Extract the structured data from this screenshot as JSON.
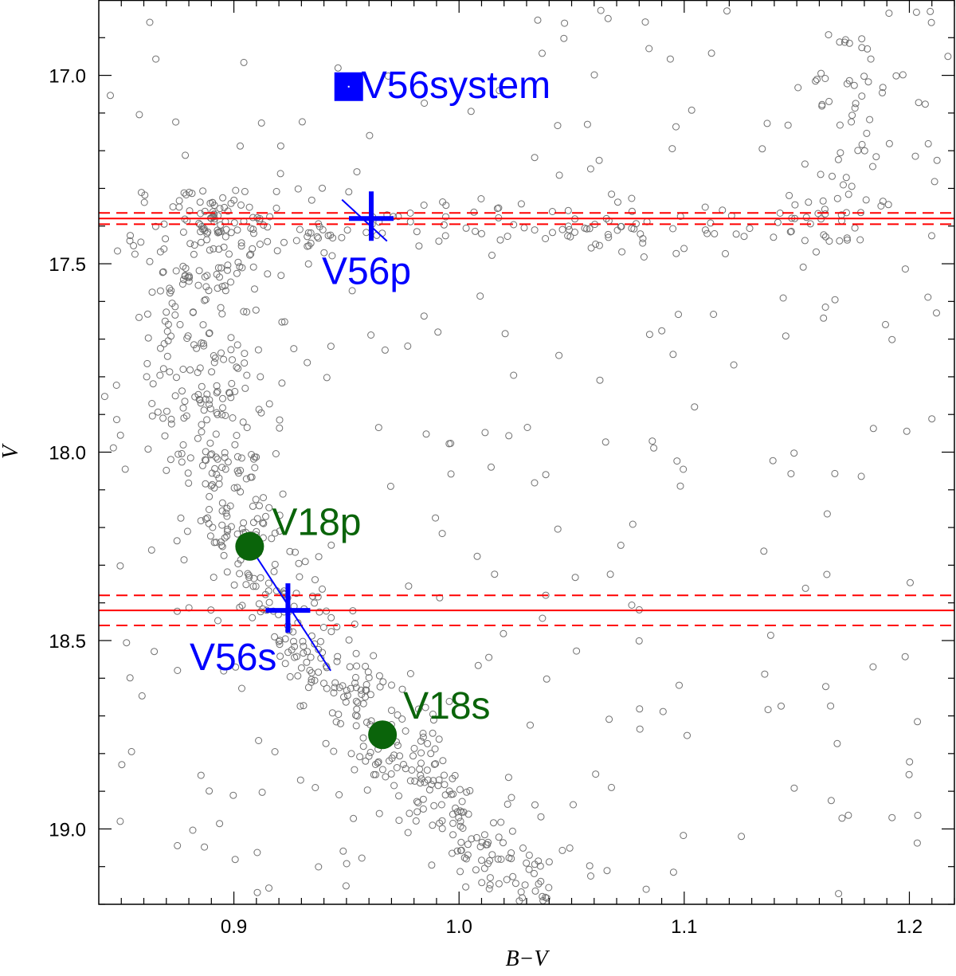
{
  "chart_data": {
    "type": "scatter",
    "title": "",
    "xlabel": "B−V",
    "ylabel": "V",
    "xlim": [
      0.84,
      1.22
    ],
    "ylim": [
      19.2,
      16.8
    ],
    "y_inverted": true,
    "x_ticks": [
      0.9,
      1.0,
      1.1,
      1.2
    ],
    "x_tick_labels": [
      "0.9",
      "1.0",
      "1.1",
      "1.2"
    ],
    "y_ticks": [
      17.0,
      17.5,
      18.0,
      18.5,
      19.0
    ],
    "y_tick_labels": [
      "17.0",
      "17.5",
      "18.0",
      "18.5",
      "19.0"
    ],
    "grid": false,
    "colors": {
      "field_stars": "#707070",
      "v56": "#0000ff",
      "v18": "#0a640a",
      "mag_lines": "#ff0000"
    },
    "field_stars": {
      "name": "",
      "ridge": [
        [
          0.885,
          17.35
        ],
        [
          0.884,
          17.5
        ],
        [
          0.884,
          17.7
        ],
        [
          0.886,
          17.9
        ],
        [
          0.892,
          18.05
        ],
        [
          0.898,
          18.15
        ],
        [
          0.905,
          18.25
        ],
        [
          0.915,
          18.35
        ],
        [
          0.928,
          18.45
        ],
        [
          0.94,
          18.55
        ],
        [
          0.955,
          18.65
        ],
        [
          0.968,
          18.75
        ],
        [
          0.98,
          18.85
        ],
        [
          0.995,
          18.95
        ],
        [
          1.01,
          19.05
        ],
        [
          1.025,
          19.13
        ],
        [
          1.04,
          19.2
        ]
      ],
      "hb_branch_V": 17.4,
      "hb_branch_x_range": [
        0.885,
        1.17
      ],
      "red_giant_branch": [
        [
          1.165,
          17.2
        ],
        [
          1.17,
          17.0
        ],
        [
          1.18,
          16.9
        ],
        [
          1.195,
          16.8
        ]
      ],
      "n_points_shown": 1150
    },
    "horizontal_lines": [
      {
        "label": "",
        "V": 17.38,
        "style": "solid"
      },
      {
        "label": "",
        "V": 17.365,
        "style": "dashed"
      },
      {
        "label": "",
        "V": 17.395,
        "style": "dashed"
      },
      {
        "label": "",
        "V": 18.42,
        "style": "solid"
      },
      {
        "label": "",
        "V": 18.38,
        "style": "dashed"
      },
      {
        "label": "",
        "V": 18.46,
        "style": "dashed"
      }
    ],
    "highlighted": [
      {
        "label": "V56system",
        "x": 0.951,
        "y": 17.03,
        "marker": "square",
        "color_key": "v56"
      },
      {
        "label": "V56p",
        "x": 0.961,
        "y": 17.38,
        "marker": "cross",
        "color_key": "v56"
      },
      {
        "label": "V56s",
        "x": 0.924,
        "y": 18.42,
        "marker": "cross",
        "color_key": "v56"
      },
      {
        "label": "V18p",
        "x": 0.907,
        "y": 18.25,
        "marker": "filled-circle",
        "color_key": "v18"
      },
      {
        "label": "V18s",
        "x": 0.966,
        "y": 18.75,
        "marker": "filled-circle",
        "color_key": "v18"
      }
    ],
    "error_segments": [
      {
        "x1": 0.948,
        "y1": 17.33,
        "x2": 0.968,
        "y2": 17.44
      },
      {
        "x1": 0.907,
        "y1": 18.25,
        "x2": 0.943,
        "y2": 18.58
      }
    ]
  }
}
